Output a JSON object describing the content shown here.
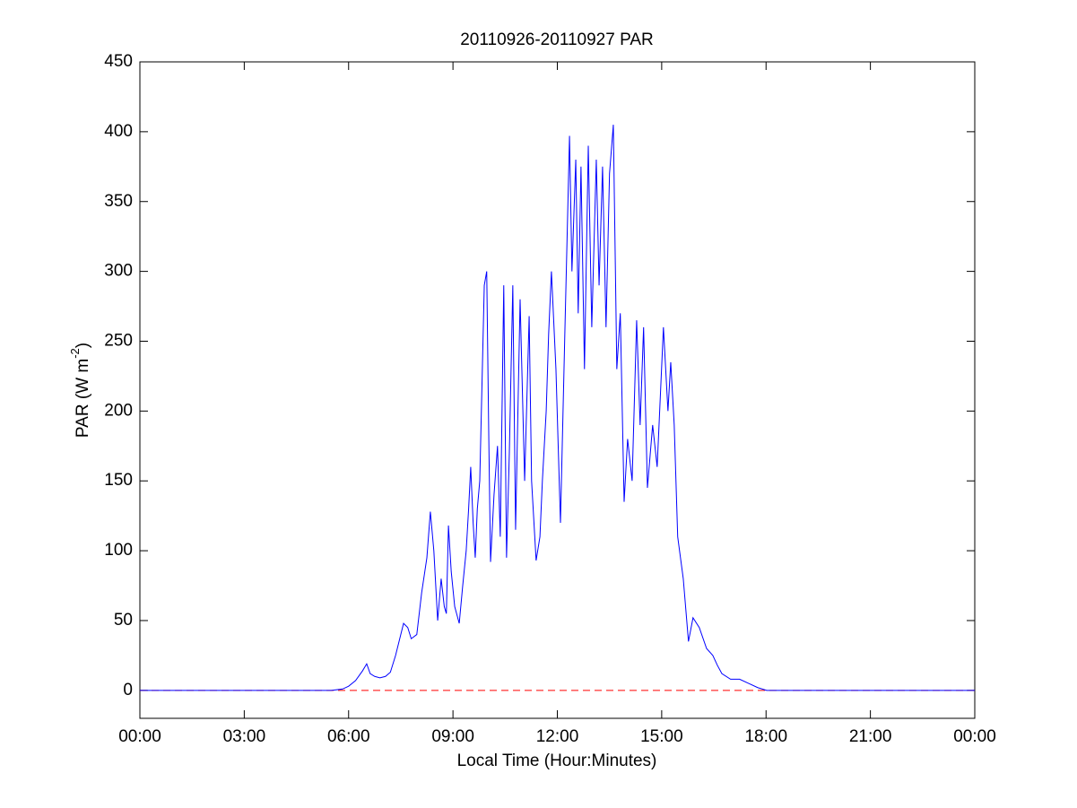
{
  "chart_data": {
    "type": "line",
    "title": "20110926-20110927 PAR",
    "xlabel": "Local Time (Hour:Minutes)",
    "ylabel": [
      "PAR (W m",
      "-2",
      ")"
    ],
    "xlim": [
      0,
      24
    ],
    "ylim": [
      -20,
      450
    ],
    "xticks": [
      {
        "value": 0,
        "label": "00:00"
      },
      {
        "value": 3,
        "label": "03:00"
      },
      {
        "value": 6,
        "label": "06:00"
      },
      {
        "value": 9,
        "label": "09:00"
      },
      {
        "value": 12,
        "label": "12:00"
      },
      {
        "value": 15,
        "label": "15:00"
      },
      {
        "value": 18,
        "label": "18:00"
      },
      {
        "value": 21,
        "label": "21:00"
      },
      {
        "value": 24,
        "label": "00:00"
      }
    ],
    "yticks": [
      0,
      50,
      100,
      150,
      200,
      250,
      300,
      350,
      400,
      450
    ],
    "x": [
      0,
      5.5,
      5.83,
      6.0,
      6.2,
      6.4,
      6.52,
      6.62,
      6.75,
      6.9,
      7.06,
      7.2,
      7.35,
      7.5,
      7.58,
      7.7,
      7.8,
      7.96,
      8.1,
      8.25,
      8.35,
      8.45,
      8.56,
      8.66,
      8.75,
      8.81,
      8.87,
      8.95,
      9.05,
      9.18,
      9.28,
      9.38,
      9.45,
      9.51,
      9.58,
      9.64,
      9.7,
      9.77,
      9.9,
      9.97,
      10.03,
      10.08,
      10.18,
      10.28,
      10.36,
      10.46,
      10.54,
      10.62,
      10.72,
      10.8,
      10.93,
      11.06,
      11.19,
      11.26,
      11.39,
      11.5,
      11.57,
      11.68,
      11.75,
      11.83,
      11.96,
      12.09,
      12.22,
      12.35,
      12.42,
      12.53,
      12.6,
      12.68,
      12.78,
      12.89,
      12.99,
      13.12,
      13.2,
      13.3,
      13.4,
      13.5,
      13.61,
      13.71,
      13.81,
      13.92,
      14.02,
      14.15,
      14.28,
      14.38,
      14.48,
      14.59,
      14.74,
      14.87,
      15.05,
      15.18,
      15.26,
      15.36,
      15.46,
      15.62,
      15.77,
      15.9,
      16.08,
      16.29,
      16.47,
      16.6,
      16.73,
      16.98,
      17.24,
      17.5,
      17.76,
      18.02,
      24
    ],
    "series": [
      {
        "color": "#0000ff",
        "values": [
          0,
          0,
          1,
          3,
          7,
          14,
          19,
          12,
          10,
          9,
          10,
          13,
          25,
          40,
          48,
          45,
          37,
          40,
          70,
          95,
          128,
          100,
          50,
          80,
          60,
          55,
          118,
          85,
          60,
          48,
          75,
          100,
          130,
          160,
          120,
          95,
          130,
          150,
          290,
          300,
          180,
          92,
          140,
          175,
          110,
          290,
          95,
          170,
          290,
          115,
          280,
          150,
          268,
          150,
          93,
          110,
          150,
          200,
          255,
          300,
          230,
          120,
          260,
          397,
          300,
          380,
          270,
          375,
          230,
          390,
          260,
          380,
          290,
          375,
          260,
          370,
          405,
          230,
          270,
          135,
          180,
          150,
          265,
          190,
          260,
          145,
          190,
          160,
          260,
          200,
          235,
          190,
          110,
          80,
          35,
          52,
          45,
          30,
          25,
          18,
          12,
          8,
          8,
          5,
          2,
          0,
          0
        ]
      }
    ],
    "reference_line": {
      "y": 0,
      "color": "#ff0000",
      "dashed": true
    }
  }
}
